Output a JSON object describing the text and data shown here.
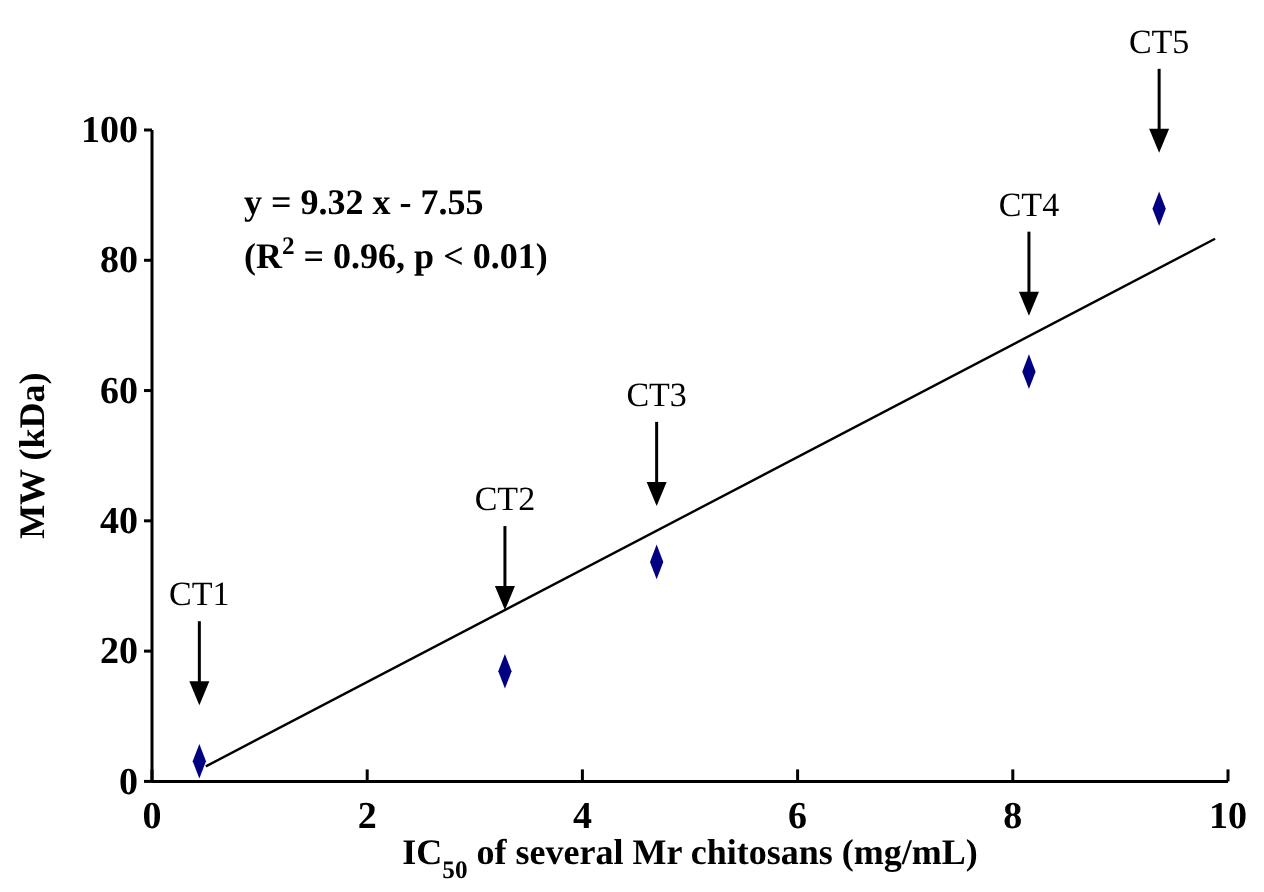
{
  "chart_data": {
    "type": "scatter",
    "xlabel": "IC$_{50}$ of several Mr chitosans (mg/mL)",
    "ylabel": "MW (kDa)",
    "xlim": [
      0,
      10
    ],
    "xticks": [
      0,
      2,
      4,
      6,
      8,
      10
    ],
    "ylim": [
      0,
      100
    ],
    "yticks": [
      0,
      20,
      40,
      60,
      80,
      100
    ],
    "grid": false,
    "marker": "diamond",
    "series": [
      {
        "color": "#000080",
        "x": [
          0.44,
          3.28,
          4.69,
          8.15,
          9.36
        ],
        "values": [
          3.1,
          16.9,
          33.7,
          62.9,
          87.9
        ]
      },
      {
        "type": "line",
        "color": "#000000",
        "line_style": "solid",
        "marker": "none",
        "x": [
          0.5,
          9.88
        ],
        "values": [
          2.3,
          83.3
        ]
      }
    ],
    "annotations": [
      "y = 9.32 x - 7.55",
      "(R$^{2}$ = 0.96, p < 0.01)",
      "CT1",
      {
        "text": "CT2",
        "x": 3.28,
        "y": 26.3
      },
      "CT3",
      "CT4",
      "CT5"
    ]
  }
}
